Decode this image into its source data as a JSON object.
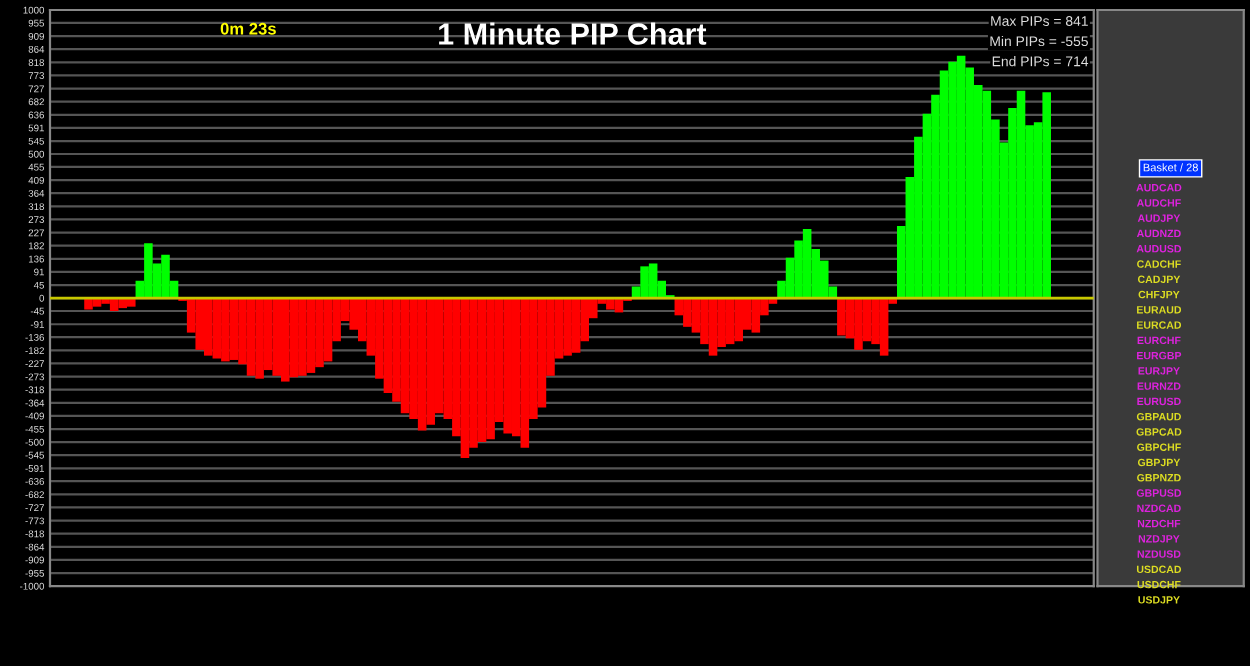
{
  "chart_data": {
    "type": "bar",
    "title": "1 Minute PIP Chart",
    "categories": [
      null,
      null,
      null,
      null,
      null,
      null,
      null,
      null,
      null,
      null,
      null,
      null,
      null,
      null,
      null,
      null,
      null,
      null,
      null,
      null,
      null,
      null,
      null,
      null,
      null,
      null,
      null,
      null,
      null,
      null,
      null,
      null,
      null,
      null,
      null,
      null,
      null,
      null,
      null,
      null,
      null,
      null,
      null,
      null,
      null,
      null,
      null,
      null,
      null,
      null,
      null,
      null,
      null,
      null,
      null,
      null,
      null,
      null,
      null,
      null,
      null,
      null,
      null,
      null,
      null,
      null,
      null,
      null,
      null,
      null,
      null,
      null,
      null,
      null,
      null,
      null,
      null,
      null,
      null,
      null,
      null,
      null,
      null,
      null,
      null,
      null,
      null,
      null,
      null,
      null,
      null,
      null,
      null,
      null,
      null,
      null,
      null,
      null,
      null,
      null,
      null,
      null,
      null,
      null,
      null,
      null,
      null,
      null,
      null,
      null,
      null,
      null,
      null,
      null,
      null,
      null,
      null,
      null,
      null,
      null,
      null,
      null
    ],
    "values": [
      null,
      null,
      null,
      null,
      -40,
      -30,
      -20,
      -45,
      -35,
      -30,
      60,
      190,
      120,
      150,
      60,
      -10,
      -120,
      -180,
      -200,
      -210,
      -220,
      -215,
      -230,
      -270,
      -280,
      -250,
      -270,
      -290,
      -275,
      -270,
      -260,
      -240,
      -220,
      -150,
      -80,
      -110,
      -150,
      -200,
      -280,
      -330,
      -360,
      -400,
      -420,
      -460,
      -440,
      -400,
      -420,
      -480,
      -555,
      -520,
      -500,
      -490,
      -430,
      -470,
      -480,
      -520,
      -420,
      -380,
      -270,
      -210,
      -200,
      -190,
      -150,
      -70,
      -20,
      -40,
      -50,
      -10,
      40,
      110,
      120,
      60,
      10,
      -60,
      -100,
      -120,
      -160,
      -200,
      -170,
      -160,
      -150,
      -110,
      -120,
      -60,
      -20,
      60,
      140,
      200,
      240,
      170,
      130,
      40,
      -130,
      -140,
      -180,
      -150,
      -160,
      -200,
      -20,
      250,
      420,
      560,
      640,
      706,
      790,
      820,
      841,
      800,
      740,
      720,
      620,
      540,
      660,
      720,
      600,
      610,
      714,
      null,
      null,
      null,
      null,
      null
    ],
    "colors": [
      "#ff0000",
      "#ff0000",
      "#ff0000",
      "#ff0000",
      "#ff0000",
      "#ff0000",
      "#ff0000",
      "#ff0000",
      "#ff0000",
      "#ff0000",
      "#00ff00",
      "#00ff00",
      "#00ff00",
      "#00ff00",
      "#00ff00",
      "#ff0000",
      "#ff0000",
      "#ff0000",
      "#ff0000",
      "#ff0000",
      "#ff0000",
      "#ff0000",
      "#ff0000",
      "#ff0000",
      "#ff0000",
      "#ff0000",
      "#ff0000",
      "#ff0000",
      "#ff0000",
      "#ff0000",
      "#ff0000",
      "#ff0000",
      "#ff0000",
      "#ff0000",
      "#ff0000",
      "#ff0000",
      "#ff0000",
      "#ff0000",
      "#ff0000",
      "#ff0000",
      "#ff0000",
      "#ff0000",
      "#ff0000",
      "#ff0000",
      "#ff0000",
      "#ff0000",
      "#ff0000",
      "#ff0000",
      "#ff0000",
      "#ff0000",
      "#ff0000",
      "#ff0000",
      "#ff0000",
      "#ff0000",
      "#ff0000",
      "#ff0000",
      "#ff0000",
      "#ff0000",
      "#ff0000",
      "#ff0000",
      "#ff0000",
      "#ff0000",
      "#ff0000",
      "#ff0000",
      "#ff0000",
      "#ff0000",
      "#ff0000",
      "#ff0000",
      "#00ff00",
      "#00ff00",
      "#00ff00",
      "#00ff00",
      "#00ff00",
      "#ff0000",
      "#ff0000",
      "#ff0000",
      "#ff0000",
      "#ff0000",
      "#ff0000",
      "#ff0000",
      "#ff0000",
      "#ff0000",
      "#ff0000",
      "#ff0000",
      "#ff0000",
      "#00ff00",
      "#00ff00",
      "#00ff00",
      "#00ff00",
      "#00ff00",
      "#00ff00",
      "#00ff00",
      "#ff0000",
      "#ff0000",
      "#ff0000",
      "#ff0000",
      "#ff0000",
      "#ff0000",
      "#ff0000",
      "#00ff00",
      "#00ff00",
      "#00ff00",
      "#00ff00",
      "#00ff00",
      "#00ff00",
      "#00ff00",
      "#00ff00",
      "#00ff00",
      "#00ff00",
      "#00ff00",
      "#00ff00",
      "#00ff00",
      "#00ff00",
      "#00ff00",
      "#00ff00",
      "#00ff00",
      "#00ff00",
      "#ff0000",
      "#ff0000",
      "#ff0000",
      "#ff0000",
      "#ff0000"
    ],
    "ylim": [
      -1000,
      1000
    ],
    "yticks": [
      1000,
      955,
      909,
      864,
      818,
      773,
      727,
      682,
      636,
      591,
      545,
      500,
      455,
      409,
      364,
      318,
      273,
      227,
      182,
      136,
      91,
      45,
      0,
      -45,
      -91,
      -136,
      -182,
      -227,
      -273,
      -318,
      -364,
      -409,
      -455,
      -500,
      -545,
      -591,
      -636,
      -682,
      -727,
      -773,
      -818,
      -864,
      -909,
      -955,
      -1000
    ],
    "grid": "y",
    "ref_lines": [
      {
        "axis": "y",
        "value": 0,
        "color": "#c8c800"
      }
    ],
    "annotations": [
      "0m 23s",
      "Max PIPs = 841",
      "Min PIPs = -555",
      "End PIPs = 714",
      "Basket / 28",
      "AUDCAD",
      "AUDCHF",
      "AUDJPY",
      "AUDNZD",
      "AUDUSD",
      "CADCHF",
      "CADJPY",
      "CHFJPY",
      "EURAUD",
      "EURCAD",
      "EURCHF",
      "EURGBP",
      "EURJPY",
      "EURNZD",
      "EURUSD",
      "GBPAUD",
      "GBPCAD",
      "GBPCHF",
      "GBPJPY",
      "GBPNZD",
      "GBPUSD",
      "NZDCAD",
      "NZDCHF",
      "NZDJPY",
      "NZDUSD",
      "USDCAD",
      "USDCHF",
      "USDJPY"
    ]
  }
}
